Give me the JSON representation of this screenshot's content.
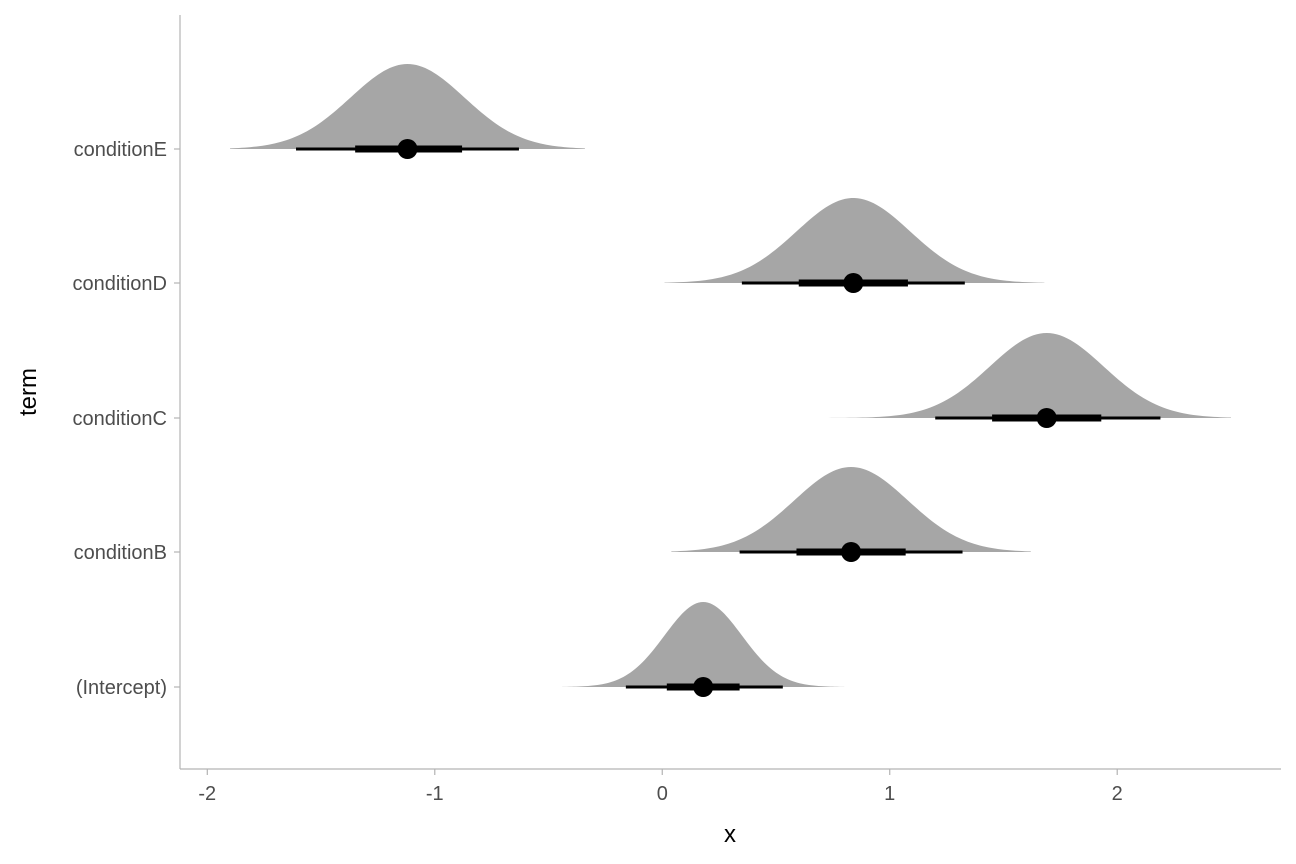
{
  "chart_data": {
    "type": "halfeye",
    "title": "",
    "xlabel": "x",
    "ylabel": "term",
    "xlim": [
      -2.12,
      2.72
    ],
    "x_ticks": [
      -2,
      -1,
      0,
      1,
      2
    ],
    "x_tick_labels": [
      "-2",
      "-1",
      "0",
      "1",
      "2"
    ],
    "grid": false,
    "categories": [
      "(Intercept)",
      "conditionB",
      "conditionC",
      "conditionD",
      "conditionE"
    ],
    "series": [
      {
        "term": "(Intercept)",
        "median": 0.18,
        "sd": 0.17,
        "dens_min": -0.44,
        "dens_max": 0.8,
        "interval_66": [
          0.02,
          0.34
        ],
        "interval_95": [
          -0.16,
          0.53
        ]
      },
      {
        "term": "conditionB",
        "median": 0.83,
        "sd": 0.25,
        "dens_min": 0.04,
        "dens_max": 1.62,
        "interval_66": [
          0.59,
          1.07
        ],
        "interval_95": [
          0.34,
          1.32
        ]
      },
      {
        "term": "conditionC",
        "median": 1.69,
        "sd": 0.25,
        "dens_min": 0.7,
        "dens_max": 2.5,
        "interval_66": [
          1.45,
          1.93
        ],
        "interval_95": [
          1.2,
          2.19
        ]
      },
      {
        "term": "conditionD",
        "median": 0.84,
        "sd": 0.25,
        "dens_min": 0.01,
        "dens_max": 1.68,
        "interval_66": [
          0.6,
          1.08
        ],
        "interval_95": [
          0.35,
          1.33
        ]
      },
      {
        "term": "conditionE",
        "median": -1.12,
        "sd": 0.25,
        "dens_min": -1.9,
        "dens_max": -0.34,
        "interval_66": [
          -1.35,
          -0.88
        ],
        "interval_95": [
          -1.61,
          -0.63
        ]
      }
    ],
    "colors": {
      "density": "#a6a6a6",
      "interval": "#000000",
      "axis": "#b3b3b3"
    }
  }
}
